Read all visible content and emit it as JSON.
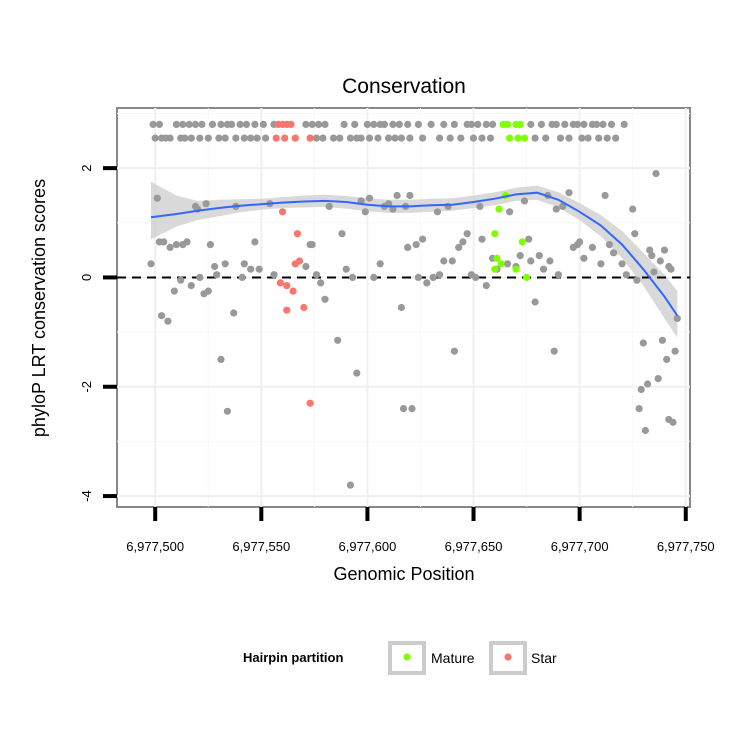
{
  "chart_data": {
    "type": "scatter",
    "title": "Conservation",
    "xlabel": "Genomic Position",
    "ylabel": "phyloP LRT conservation scores",
    "xlim": [
      6977482,
      6977752
    ],
    "ylim": [
      -4.2,
      3.1
    ],
    "x_ticks": [
      6977500,
      6977550,
      6977600,
      6977650,
      6977700,
      6977750
    ],
    "x_tick_labels": [
      "6,977,500",
      "6,977,550",
      "6,977,600",
      "6,977,650",
      "6,977,700",
      "6,977,750"
    ],
    "y_ticks": [
      -4,
      -2,
      0,
      2
    ],
    "y_tick_labels": [
      "-4",
      "-2",
      "0",
      "2"
    ],
    "grid": true,
    "reference_line": {
      "y": 0,
      "style": "dashed",
      "color": "#000000"
    },
    "legend": {
      "title": "Hairpin partition",
      "position": "bottom",
      "entries": [
        {
          "label": "Mature",
          "color": "#7fff00"
        },
        {
          "label": "Star",
          "color": "#f8766d"
        }
      ]
    },
    "colors": {
      "other": "#999999",
      "Mature": "#7fff00",
      "Star": "#f8766d",
      "smooth_line": "#3366ff",
      "smooth_band": "#cccccc"
    },
    "series": [
      {
        "group": "other",
        "points": [
          [
            6977499,
            2.8
          ],
          [
            6977500,
            2.55
          ],
          [
            6977502,
            2.8
          ],
          [
            6977503,
            2.55
          ],
          [
            6977505,
            2.55
          ],
          [
            6977507,
            2.55
          ],
          [
            6977510,
            2.8
          ],
          [
            6977512,
            2.55
          ],
          [
            6977513,
            2.8
          ],
          [
            6977514,
            2.55
          ],
          [
            6977516,
            2.8
          ],
          [
            6977517,
            2.55
          ],
          [
            6977519,
            2.8
          ],
          [
            6977521,
            2.55
          ],
          [
            6977522,
            2.8
          ],
          [
            6977525,
            2.55
          ],
          [
            6977527,
            2.8
          ],
          [
            6977530,
            2.55
          ],
          [
            6977531,
            2.8
          ],
          [
            6977533,
            2.55
          ],
          [
            6977534,
            2.8
          ],
          [
            6977536,
            2.8
          ],
          [
            6977538,
            2.55
          ],
          [
            6977540,
            2.8
          ],
          [
            6977542,
            2.55
          ],
          [
            6977543,
            2.8
          ],
          [
            6977545,
            2.55
          ],
          [
            6977547,
            2.8
          ],
          [
            6977548,
            2.55
          ],
          [
            6977551,
            2.8
          ],
          [
            6977552,
            2.55
          ],
          [
            6977556,
            2.8
          ],
          [
            6977571,
            2.8
          ],
          [
            6977573,
            2.55
          ],
          [
            6977574,
            2.8
          ],
          [
            6977576,
            2.55
          ],
          [
            6977577,
            2.8
          ],
          [
            6977579,
            2.55
          ],
          [
            6977580,
            2.8
          ],
          [
            6977584,
            2.55
          ],
          [
            6977587,
            2.55
          ],
          [
            6977589,
            2.8
          ],
          [
            6977592,
            2.55
          ],
          [
            6977594,
            2.8
          ],
          [
            6977595,
            2.55
          ],
          [
            6977597,
            2.55
          ],
          [
            6977600,
            2.8
          ],
          [
            6977601,
            2.55
          ],
          [
            6977603,
            2.8
          ],
          [
            6977605,
            2.55
          ],
          [
            6977606,
            2.8
          ],
          [
            6977608,
            2.8
          ],
          [
            6977610,
            2.55
          ],
          [
            6977612,
            2.8
          ],
          [
            6977613,
            2.55
          ],
          [
            6977615,
            2.8
          ],
          [
            6977616,
            2.55
          ],
          [
            6977619,
            2.8
          ],
          [
            6977620,
            2.55
          ],
          [
            6977624,
            2.8
          ],
          [
            6977626,
            2.55
          ],
          [
            6977630,
            2.8
          ],
          [
            6977634,
            2.55
          ],
          [
            6977636,
            2.8
          ],
          [
            6977639,
            2.55
          ],
          [
            6977641,
            2.8
          ],
          [
            6977644,
            2.55
          ],
          [
            6977647,
            2.8
          ],
          [
            6977649,
            2.8
          ],
          [
            6977650,
            2.55
          ],
          [
            6977652,
            2.8
          ],
          [
            6977654,
            2.55
          ],
          [
            6977656,
            2.8
          ],
          [
            6977658,
            2.55
          ],
          [
            6977659,
            2.8
          ],
          [
            6977677,
            2.8
          ],
          [
            6977679,
            2.55
          ],
          [
            6977682,
            2.8
          ],
          [
            6977684,
            2.55
          ],
          [
            6977687,
            2.8
          ],
          [
            6977689,
            2.8
          ],
          [
            6977691,
            2.55
          ],
          [
            6977693,
            2.8
          ],
          [
            6977695,
            2.55
          ],
          [
            6977697,
            2.8
          ],
          [
            6977699,
            2.8
          ],
          [
            6977701,
            2.55
          ],
          [
            6977702,
            2.8
          ],
          [
            6977704,
            2.55
          ],
          [
            6977706,
            2.8
          ],
          [
            6977708,
            2.8
          ],
          [
            6977709,
            2.55
          ],
          [
            6977711,
            2.8
          ],
          [
            6977713,
            2.55
          ],
          [
            6977715,
            2.8
          ],
          [
            6977717,
            2.55
          ],
          [
            6977721,
            2.8
          ],
          [
            6977498,
            0.25
          ],
          [
            6977501,
            1.45
          ],
          [
            6977502,
            0.65
          ],
          [
            6977503,
            -0.7
          ],
          [
            6977504,
            0.65
          ],
          [
            6977506,
            -0.8
          ],
          [
            6977507,
            0.55
          ],
          [
            6977509,
            -0.25
          ],
          [
            6977510,
            0.6
          ],
          [
            6977512,
            -0.05
          ],
          [
            6977513,
            0.6
          ],
          [
            6977515,
            0.65
          ],
          [
            6977517,
            -0.15
          ],
          [
            6977519,
            1.3
          ],
          [
            6977520,
            1.25
          ],
          [
            6977521,
            0.0
          ],
          [
            6977523,
            -0.3
          ],
          [
            6977524,
            1.35
          ],
          [
            6977525,
            -0.25
          ],
          [
            6977526,
            0.6
          ],
          [
            6977528,
            0.2
          ],
          [
            6977529,
            0.05
          ],
          [
            6977531,
            -1.5
          ],
          [
            6977533,
            0.25
          ],
          [
            6977534,
            -2.45
          ],
          [
            6977537,
            -0.65
          ],
          [
            6977538,
            1.3
          ],
          [
            6977541,
            0.0
          ],
          [
            6977542,
            0.25
          ],
          [
            6977545,
            0.15
          ],
          [
            6977547,
            0.65
          ],
          [
            6977549,
            0.15
          ],
          [
            6977554,
            1.35
          ],
          [
            6977556,
            0.05
          ],
          [
            6977571,
            0.2
          ],
          [
            6977573,
            0.6
          ],
          [
            6977574,
            0.6
          ],
          [
            6977576,
            0.05
          ],
          [
            6977578,
            -0.1
          ],
          [
            6977580,
            -0.4
          ],
          [
            6977582,
            1.3
          ],
          [
            6977586,
            -1.15
          ],
          [
            6977588,
            0.8
          ],
          [
            6977590,
            0.15
          ],
          [
            6977592,
            -3.8
          ],
          [
            6977593,
            0.0
          ],
          [
            6977595,
            -1.75
          ],
          [
            6977597,
            1.4
          ],
          [
            6977599,
            1.2
          ],
          [
            6977601,
            1.45
          ],
          [
            6977603,
            0.0
          ],
          [
            6977606,
            0.25
          ],
          [
            6977608,
            1.3
          ],
          [
            6977610,
            1.35
          ],
          [
            6977612,
            1.25
          ],
          [
            6977614,
            1.5
          ],
          [
            6977616,
            -0.55
          ],
          [
            6977617,
            -2.4
          ],
          [
            6977618,
            1.3
          ],
          [
            6977619,
            0.55
          ],
          [
            6977620,
            1.5
          ],
          [
            6977621,
            -2.4
          ],
          [
            6977623,
            0.6
          ],
          [
            6977624,
            0.0
          ],
          [
            6977626,
            0.7
          ],
          [
            6977628,
            -0.1
          ],
          [
            6977631,
            0.0
          ],
          [
            6977633,
            1.2
          ],
          [
            6977634,
            0.05
          ],
          [
            6977636,
            0.3
          ],
          [
            6977638,
            1.3
          ],
          [
            6977640,
            0.3
          ],
          [
            6977641,
            -1.35
          ],
          [
            6977643,
            0.55
          ],
          [
            6977645,
            0.65
          ],
          [
            6977647,
            0.8
          ],
          [
            6977649,
            0.05
          ],
          [
            6977651,
            0.0
          ],
          [
            6977653,
            1.3
          ],
          [
            6977654,
            0.7
          ],
          [
            6977656,
            -0.15
          ],
          [
            6977659,
            0.35
          ],
          [
            6977661,
            0.15
          ],
          [
            6977666,
            0.25
          ],
          [
            6977667,
            1.2
          ],
          [
            6977670,
            0.2
          ],
          [
            6977672,
            0.4
          ],
          [
            6977674,
            1.4
          ],
          [
            6977676,
            0.7
          ],
          [
            6977677,
            0.3
          ],
          [
            6977679,
            -0.45
          ],
          [
            6977681,
            0.4
          ],
          [
            6977683,
            0.15
          ],
          [
            6977685,
            1.5
          ],
          [
            6977686,
            0.3
          ],
          [
            6977688,
            -1.35
          ],
          [
            6977689,
            1.25
          ],
          [
            6977690,
            0.05
          ],
          [
            6977692,
            1.3
          ],
          [
            6977695,
            1.55
          ],
          [
            6977697,
            0.55
          ],
          [
            6977699,
            0.6
          ],
          [
            6977700,
            0.65
          ],
          [
            6977702,
            0.35
          ],
          [
            6977706,
            0.55
          ],
          [
            6977710,
            0.25
          ],
          [
            6977712,
            1.5
          ],
          [
            6977714,
            0.6
          ],
          [
            6977716,
            0.45
          ],
          [
            6977720,
            0.25
          ],
          [
            6977722,
            0.05
          ],
          [
            6977725,
            1.25
          ],
          [
            6977726,
            0.8
          ],
          [
            6977727,
            -0.05
          ],
          [
            6977728,
            -2.4
          ],
          [
            6977729,
            -2.05
          ],
          [
            6977730,
            -1.2
          ],
          [
            6977731,
            -2.8
          ],
          [
            6977732,
            -1.95
          ],
          [
            6977733,
            0.5
          ],
          [
            6977734,
            0.4
          ],
          [
            6977735,
            0.1
          ],
          [
            6977736,
            1.9
          ],
          [
            6977737,
            -1.85
          ],
          [
            6977738,
            0.3
          ],
          [
            6977739,
            -1.15
          ],
          [
            6977740,
            0.5
          ],
          [
            6977741,
            -1.5
          ],
          [
            6977742,
            0.2
          ],
          [
            6977742,
            -2.6
          ],
          [
            6977743,
            0.15
          ],
          [
            6977744,
            -2.65
          ],
          [
            6977745,
            -1.35
          ],
          [
            6977746,
            -0.75
          ]
        ]
      },
      {
        "group": "Mature",
        "points": [
          [
            6977664,
            2.8
          ],
          [
            6977666,
            2.8
          ],
          [
            6977670,
            2.8
          ],
          [
            6977672,
            2.8
          ],
          [
            6977667,
            2.55
          ],
          [
            6977671,
            2.55
          ],
          [
            6977674,
            2.55
          ],
          [
            6977665,
            1.5
          ],
          [
            6977660,
            0.8
          ],
          [
            6977661,
            0.35
          ],
          [
            6977663,
            0.25
          ],
          [
            6977660,
            0.15
          ],
          [
            6977662,
            1.25
          ],
          [
            6977670,
            0.15
          ],
          [
            6977673,
            0.65
          ],
          [
            6977675,
            0.0
          ]
        ]
      },
      {
        "group": "Star",
        "points": [
          [
            6977558,
            2.8
          ],
          [
            6977560,
            2.8
          ],
          [
            6977562,
            2.8
          ],
          [
            6977564,
            2.8
          ],
          [
            6977557,
            2.55
          ],
          [
            6977561,
            2.55
          ],
          [
            6977566,
            2.55
          ],
          [
            6977573,
            2.55
          ],
          [
            6977560,
            1.2
          ],
          [
            6977567,
            0.8
          ],
          [
            6977566,
            0.25
          ],
          [
            6977568,
            0.3
          ],
          [
            6977559,
            -0.1
          ],
          [
            6977562,
            -0.15
          ],
          [
            6977565,
            -0.25
          ],
          [
            6977570,
            -0.55
          ],
          [
            6977562,
            -0.6
          ],
          [
            6977573,
            -2.3
          ]
        ]
      }
    ],
    "smooth": {
      "x": [
        6977498,
        6977510,
        6977520,
        6977530,
        6977540,
        6977550,
        6977560,
        6977570,
        6977580,
        6977590,
        6977600,
        6977610,
        6977620,
        6977630,
        6977640,
        6977650,
        6977660,
        6977670,
        6977680,
        6977690,
        6977700,
        6977710,
        6977720,
        6977730,
        6977740,
        6977746
      ],
      "y": [
        1.1,
        1.16,
        1.22,
        1.27,
        1.31,
        1.34,
        1.37,
        1.39,
        1.4,
        1.38,
        1.33,
        1.3,
        1.3,
        1.32,
        1.33,
        1.38,
        1.44,
        1.52,
        1.55,
        1.42,
        1.2,
        0.95,
        0.6,
        0.15,
        -0.35,
        -0.7
      ],
      "lower": [
        0.7,
        0.93,
        1.05,
        1.12,
        1.19,
        1.24,
        1.27,
        1.28,
        1.29,
        1.26,
        1.21,
        1.18,
        1.18,
        1.2,
        1.22,
        1.27,
        1.32,
        1.4,
        1.42,
        1.28,
        1.05,
        0.75,
        0.35,
        -0.15,
        -0.75,
        -1.1
      ],
      "upper": [
        1.75,
        1.5,
        1.4,
        1.42,
        1.43,
        1.44,
        1.47,
        1.5,
        1.51,
        1.49,
        1.45,
        1.42,
        1.42,
        1.44,
        1.45,
        1.5,
        1.56,
        1.64,
        1.68,
        1.56,
        1.36,
        1.14,
        0.85,
        0.45,
        0.05,
        -0.25
      ]
    }
  }
}
